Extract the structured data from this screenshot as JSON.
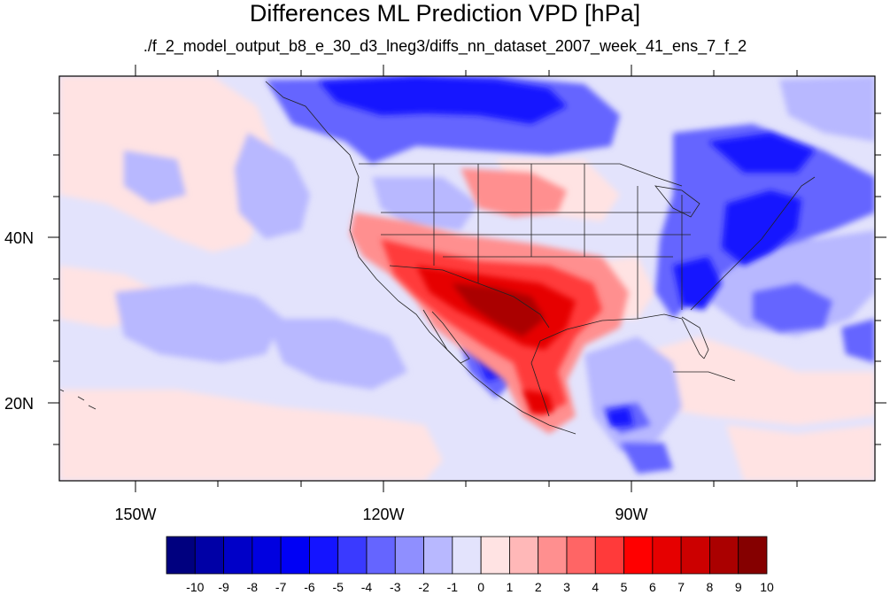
{
  "title": "Differences ML Prediction VPD [hPa]",
  "subtitle": "./f_2_model_output_b8_e_30_d3_lneg3/diffs_nn_dataset_2007_week_41_ens_7_f_2",
  "map": {
    "lon_labels": [
      "150W",
      "120W",
      "90W"
    ],
    "lat_labels": [
      "40N",
      "20N"
    ]
  },
  "colorbar": {
    "labels": [
      "-10",
      "-9",
      "-8",
      "-7",
      "-6",
      "-5",
      "-4",
      "-3",
      "-2",
      "-1",
      "0",
      "1",
      "2",
      "3",
      "4",
      "5",
      "6",
      "7",
      "8",
      "9",
      "10"
    ],
    "colors": [
      "#00007f",
      "#0000a6",
      "#0000c8",
      "#0000e0",
      "#0000f5",
      "#1414ff",
      "#3a3aff",
      "#6565ff",
      "#8f8fff",
      "#b8b8ff",
      "#e3e3fc",
      "#ffe3e3",
      "#ffb8b8",
      "#ff8f8f",
      "#ff6565",
      "#ff3a3a",
      "#ff0000",
      "#e60000",
      "#cc0000",
      "#aa0000",
      "#850000"
    ]
  }
}
